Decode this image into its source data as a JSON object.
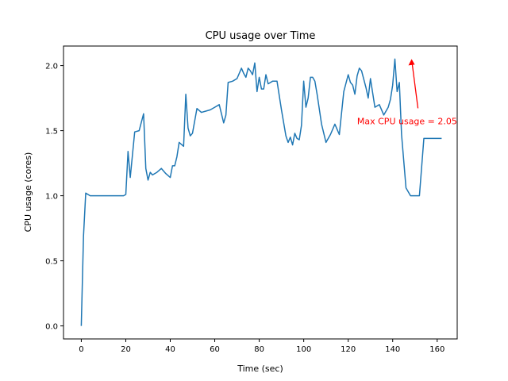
{
  "chart_data": {
    "type": "line",
    "title": "CPU usage over Time",
    "xlabel": "Time (sec)",
    "ylabel": "CPU usage (cores)",
    "xlim": [
      -8,
      169
    ],
    "ylim": [
      -0.1,
      2.15
    ],
    "xticks": [
      0,
      20,
      40,
      60,
      80,
      100,
      120,
      140,
      160
    ],
    "yticks": [
      0.0,
      0.5,
      1.0,
      1.5,
      2.0
    ],
    "ytick_labels": [
      "0.0",
      "0.5",
      "1.0",
      "1.5",
      "2.0"
    ],
    "grid": false,
    "series": [
      {
        "color": "#1f77b4",
        "x": [
          0,
          1,
          2,
          4,
          6,
          8,
          10,
          12,
          14,
          16,
          18,
          19,
          20,
          21,
          22,
          24,
          26,
          28,
          29,
          30,
          31,
          32,
          34,
          36,
          38,
          40,
          41,
          42,
          43,
          44,
          46,
          47,
          48,
          49,
          50,
          52,
          54,
          56,
          58,
          60,
          62,
          64,
          65,
          66,
          68,
          70,
          72,
          73,
          74,
          75,
          76,
          77,
          78,
          79,
          80,
          81,
          82,
          83,
          84,
          86,
          88,
          90,
          92,
          93,
          94,
          95,
          96,
          97,
          98,
          99,
          100,
          101,
          102,
          103,
          104,
          105,
          106,
          108,
          110,
          112,
          114,
          116,
          118,
          120,
          121,
          122,
          123,
          124,
          125,
          126,
          128,
          129,
          130,
          132,
          134,
          136,
          138,
          139,
          140,
          141,
          142,
          143,
          144,
          146,
          148,
          150,
          152,
          154,
          156,
          158,
          160,
          161,
          162
        ],
        "y": [
          0.0,
          0.69,
          1.02,
          1.0,
          1.0,
          1.0,
          1.0,
          1.0,
          1.0,
          1.0,
          1.0,
          1.0,
          1.01,
          1.34,
          1.14,
          1.49,
          1.5,
          1.63,
          1.21,
          1.12,
          1.18,
          1.16,
          1.18,
          1.21,
          1.17,
          1.14,
          1.23,
          1.23,
          1.3,
          1.41,
          1.38,
          1.78,
          1.52,
          1.46,
          1.48,
          1.67,
          1.64,
          1.65,
          1.66,
          1.68,
          1.7,
          1.56,
          1.62,
          1.87,
          1.88,
          1.9,
          1.98,
          1.94,
          1.91,
          1.98,
          1.96,
          1.93,
          2.02,
          1.8,
          1.91,
          1.82,
          1.82,
          1.93,
          1.86,
          1.88,
          1.88,
          1.66,
          1.46,
          1.41,
          1.45,
          1.39,
          1.48,
          1.44,
          1.43,
          1.54,
          1.88,
          1.68,
          1.75,
          1.91,
          1.91,
          1.88,
          1.78,
          1.55,
          1.41,
          1.47,
          1.55,
          1.47,
          1.8,
          1.93,
          1.87,
          1.85,
          1.78,
          1.92,
          1.98,
          1.96,
          1.83,
          1.75,
          1.9,
          1.68,
          1.7,
          1.62,
          1.68,
          1.74,
          1.85,
          2.05,
          1.8,
          1.87,
          1.47,
          1.06,
          1.0,
          1.0,
          1.0,
          1.44,
          1.44,
          1.44,
          1.44,
          1.44,
          1.44
        ]
      }
    ],
    "annotation": {
      "text": "Max CPU usage = 2.05",
      "color": "#ff0000",
      "point": [
        148.5,
        2.05
      ],
      "text_at": [
        124,
        1.55
      ]
    }
  }
}
